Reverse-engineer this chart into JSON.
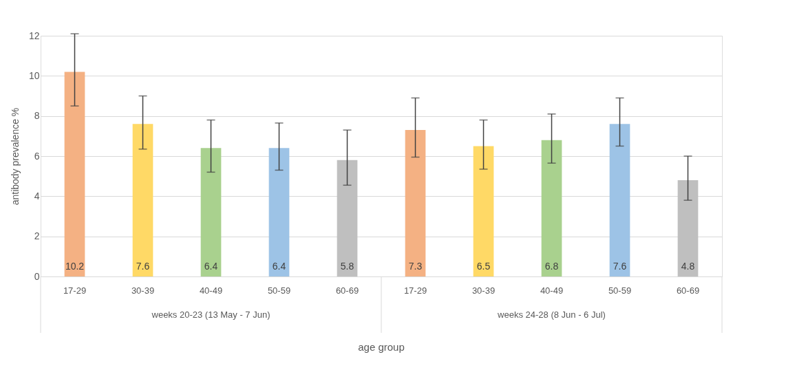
{
  "chart_data": {
    "type": "bar",
    "xlabel": "age group",
    "ylabel": "antibody prevalence %",
    "categories": [
      "17-29",
      "30-39",
      "40-49",
      "50-59",
      "60-69",
      "17-29",
      "30-39",
      "40-49",
      "50-59",
      "60-69"
    ],
    "values": [
      10.2,
      7.6,
      6.4,
      6.4,
      5.8,
      7.3,
      6.5,
      6.8,
      7.6,
      4.8
    ],
    "colors": [
      "#f4b183",
      "#ffd966",
      "#a9d18e",
      "#9dc3e6",
      "#bfbfbf",
      "#f4b183",
      "#ffd966",
      "#a9d18e",
      "#9dc3e6",
      "#bfbfbf"
    ],
    "errors": [
      [
        8.5,
        12.1
      ],
      [
        6.35,
        9.0
      ],
      [
        5.2,
        7.8
      ],
      [
        5.3,
        7.65
      ],
      [
        4.55,
        7.3
      ],
      [
        5.95,
        8.9
      ],
      [
        5.35,
        7.8
      ],
      [
        5.65,
        8.1
      ],
      [
        6.5,
        8.9
      ],
      [
        3.8,
        6.0
      ]
    ],
    "data_labels": true,
    "ylim": [
      0,
      12
    ],
    "yticks": [
      0,
      2,
      4,
      6,
      8,
      10,
      12
    ],
    "grid": "y",
    "annotations": [
      "weeks 20-23 (13 May - 7 Jun)",
      "weeks 24-28 (8 Jun - 6 Jul)"
    ]
  }
}
